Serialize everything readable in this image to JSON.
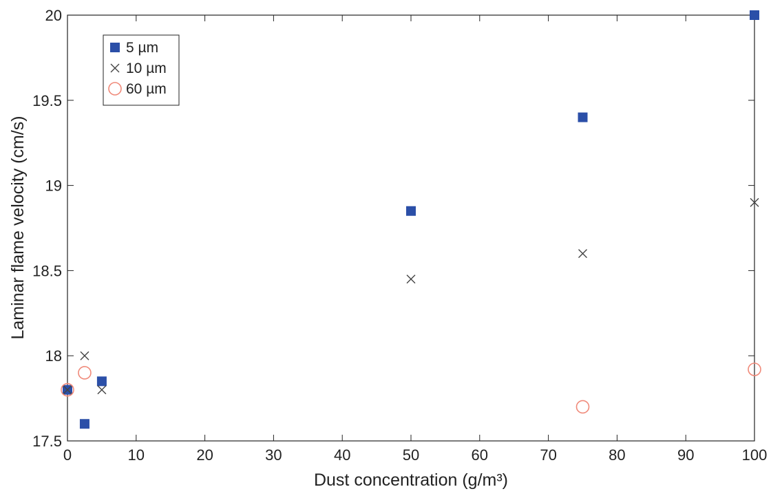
{
  "chart_data": {
    "type": "scatter",
    "x_label": "Dust concentration (g/m³)",
    "y_label": "Laminar flame velocity (cm/s)",
    "xlim": [
      0,
      100
    ],
    "ylim": [
      17.5,
      20
    ],
    "xticks": [
      0,
      10,
      20,
      30,
      40,
      50,
      60,
      70,
      80,
      90,
      100
    ],
    "yticks": [
      17.5,
      18,
      18.5,
      19,
      19.5,
      20
    ],
    "legend": "upper left",
    "grid": false,
    "series": [
      {
        "name": "5 µm",
        "color": "#2b4fa8",
        "marker": "square",
        "x": [
          0,
          2.5,
          5,
          50,
          75,
          100
        ],
        "values": [
          17.8,
          17.6,
          17.85,
          18.85,
          19.4,
          20
        ]
      },
      {
        "name": "10 µm",
        "color": "#444444",
        "marker": "x",
        "x": [
          0,
          2.5,
          5,
          50,
          75,
          100
        ],
        "values": [
          17.8,
          18,
          17.8,
          18.45,
          18.6,
          18.9
        ]
      },
      {
        "name": "60 µm",
        "color": "#f08a7a",
        "marker": "circle",
        "x": [
          0,
          2.5,
          75,
          100
        ],
        "values": [
          17.8,
          17.9,
          17.7,
          17.92
        ]
      }
    ]
  }
}
